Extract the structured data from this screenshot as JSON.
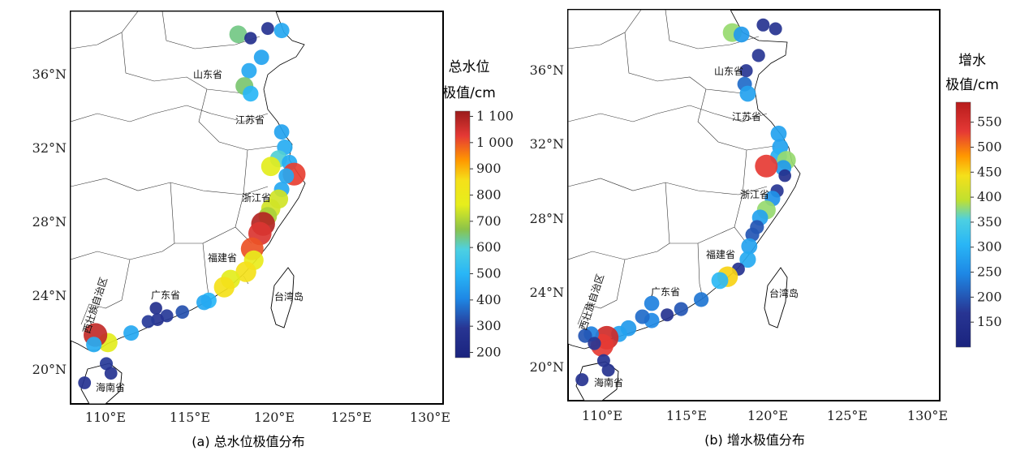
{
  "panel_a": {
    "caption": "(a) 总水位极值分布",
    "legend_title_line1": "总水位",
    "legend_title_line2": "极值/cm",
    "legend_ticks": [
      "1 100",
      "1 000",
      "900",
      "800",
      "700",
      "600",
      "500",
      "400",
      "300",
      "200"
    ],
    "x_ticks": [
      "110°E",
      "115°E",
      "120°E",
      "125°E",
      "130°E"
    ],
    "y_ticks": [
      "36°N",
      "32°N",
      "28°N",
      "24°N",
      "20°N"
    ],
    "labels": {
      "shandong": "山东省",
      "jiangsu": "江苏省",
      "zhejiang": "浙江省",
      "fujian": "福建省",
      "guangdong": "广东省",
      "guangxi": "西壮族自治区",
      "taiwan": "台湾岛",
      "hainan": "海南省"
    }
  },
  "panel_b": {
    "caption": "(b) 增水极值分布",
    "legend_title_line1": "增水",
    "legend_title_line2": "极值/cm",
    "legend_ticks": [
      "550",
      "500",
      "450",
      "400",
      "350",
      "300",
      "250",
      "200",
      "150"
    ],
    "x_ticks": [
      "110°E",
      "115°E",
      "120°E",
      "125°E",
      "130°E"
    ],
    "y_ticks": [
      "36°N",
      "32°N",
      "28°N",
      "24°N",
      "20°N"
    ],
    "labels": {
      "shandong": "山东省",
      "jiangsu": "江苏省",
      "zhejiang": "浙江省",
      "fujian": "福建省",
      "guangdong": "广东省",
      "guangxi": "西壮族自治区",
      "taiwan": "台湾岛",
      "hainan": "海南省"
    }
  },
  "chart_data": [
    {
      "type": "scatter",
      "title": "(a) 总水位极值分布",
      "colorbar_label": "总水位极值/cm",
      "colorbar_range": [
        180,
        1120
      ],
      "xlim": [
        108,
        132
      ],
      "ylim": [
        18,
        38.5
      ],
      "points": [
        {
          "lon": 117.3,
          "lat": 39.0,
          "value": 520
        },
        {
          "lon": 118.8,
          "lat": 37.3,
          "value": 640
        },
        {
          "lon": 119.6,
          "lat": 37.1,
          "value": 260
        },
        {
          "lon": 120.7,
          "lat": 37.6,
          "value": 280
        },
        {
          "lon": 121.6,
          "lat": 37.5,
          "value": 470
        },
        {
          "lon": 120.3,
          "lat": 36.1,
          "value": 460
        },
        {
          "lon": 119.5,
          "lat": 35.4,
          "value": 470
        },
        {
          "lon": 119.2,
          "lat": 34.6,
          "value": 650
        },
        {
          "lon": 119.6,
          "lat": 34.2,
          "value": 500
        },
        {
          "lon": 121.6,
          "lat": 32.2,
          "value": 460
        },
        {
          "lon": 121.8,
          "lat": 31.4,
          "value": 480
        },
        {
          "lon": 121.4,
          "lat": 30.8,
          "value": 600
        },
        {
          "lon": 120.9,
          "lat": 30.4,
          "value": 760
        },
        {
          "lon": 122.1,
          "lat": 30.6,
          "value": 480
        },
        {
          "lon": 122.4,
          "lat": 30.0,
          "value": 1020
        },
        {
          "lon": 121.9,
          "lat": 29.9,
          "value": 470
        },
        {
          "lon": 121.6,
          "lat": 29.2,
          "value": 470
        },
        {
          "lon": 121.4,
          "lat": 28.7,
          "value": 740
        },
        {
          "lon": 120.9,
          "lat": 28.2,
          "value": 740
        },
        {
          "lon": 120.7,
          "lat": 27.8,
          "value": 700
        },
        {
          "lon": 120.4,
          "lat": 27.4,
          "value": 1090
        },
        {
          "lon": 120.2,
          "lat": 26.9,
          "value": 1040
        },
        {
          "lon": 119.7,
          "lat": 26.1,
          "value": 1000
        },
        {
          "lon": 119.8,
          "lat": 25.5,
          "value": 780
        },
        {
          "lon": 119.3,
          "lat": 24.9,
          "value": 850
        },
        {
          "lon": 118.3,
          "lat": 24.5,
          "value": 760
        },
        {
          "lon": 117.9,
          "lat": 24.1,
          "value": 850
        },
        {
          "lon": 116.9,
          "lat": 23.4,
          "value": 500
        },
        {
          "lon": 116.6,
          "lat": 23.3,
          "value": 470
        },
        {
          "lon": 115.2,
          "lat": 22.8,
          "value": 330
        },
        {
          "lon": 114.2,
          "lat": 22.6,
          "value": 300
        },
        {
          "lon": 113.5,
          "lat": 23.0,
          "value": 260
        },
        {
          "lon": 113.6,
          "lat": 22.4,
          "value": 280
        },
        {
          "lon": 113.0,
          "lat": 22.3,
          "value": 300
        },
        {
          "lon": 111.9,
          "lat": 21.7,
          "value": 470
        },
        {
          "lon": 110.4,
          "lat": 21.2,
          "value": 760
        },
        {
          "lon": 109.6,
          "lat": 21.6,
          "value": 1070
        },
        {
          "lon": 109.5,
          "lat": 21.1,
          "value": 480
        },
        {
          "lon": 110.3,
          "lat": 20.1,
          "value": 300
        },
        {
          "lon": 110.6,
          "lat": 19.6,
          "value": 280
        },
        {
          "lon": 108.9,
          "lat": 19.1,
          "value": 280
        }
      ]
    },
    {
      "type": "scatter",
      "title": "(b) 增水极值分布",
      "colorbar_label": "增水极值/cm",
      "colorbar_range": [
        100,
        590
      ],
      "xlim": [
        108,
        132
      ],
      "ylim": [
        18,
        38.5
      ],
      "points": [
        {
          "lon": 117.3,
          "lat": 39.0,
          "value": 140
        },
        {
          "lon": 118.6,
          "lat": 37.3,
          "value": 380
        },
        {
          "lon": 119.2,
          "lat": 37.2,
          "value": 270
        },
        {
          "lon": 120.6,
          "lat": 37.7,
          "value": 160
        },
        {
          "lon": 121.4,
          "lat": 37.5,
          "value": 160
        },
        {
          "lon": 120.3,
          "lat": 36.1,
          "value": 170
        },
        {
          "lon": 119.5,
          "lat": 35.3,
          "value": 170
        },
        {
          "lon": 119.4,
          "lat": 34.6,
          "value": 220
        },
        {
          "lon": 119.6,
          "lat": 34.1,
          "value": 280
        },
        {
          "lon": 121.6,
          "lat": 32.0,
          "value": 280
        },
        {
          "lon": 121.7,
          "lat": 31.3,
          "value": 280
        },
        {
          "lon": 121.6,
          "lat": 30.8,
          "value": 300
        },
        {
          "lon": 122.1,
          "lat": 30.6,
          "value": 380
        },
        {
          "lon": 121.9,
          "lat": 30.2,
          "value": 270
        },
        {
          "lon": 120.8,
          "lat": 30.3,
          "value": 530
        },
        {
          "lon": 122.0,
          "lat": 29.8,
          "value": 150
        },
        {
          "lon": 121.5,
          "lat": 29.0,
          "value": 170
        },
        {
          "lon": 121.2,
          "lat": 28.6,
          "value": 260
        },
        {
          "lon": 120.8,
          "lat": 28.0,
          "value": 380
        },
        {
          "lon": 120.4,
          "lat": 27.6,
          "value": 280
        },
        {
          "lon": 120.2,
          "lat": 27.1,
          "value": 200
        },
        {
          "lon": 119.9,
          "lat": 26.7,
          "value": 200
        },
        {
          "lon": 119.7,
          "lat": 26.1,
          "value": 280
        },
        {
          "lon": 119.6,
          "lat": 25.4,
          "value": 290
        },
        {
          "lon": 119.0,
          "lat": 24.9,
          "value": 160
        },
        {
          "lon": 118.3,
          "lat": 24.5,
          "value": 450
        },
        {
          "lon": 117.8,
          "lat": 24.3,
          "value": 310
        },
        {
          "lon": 116.6,
          "lat": 23.3,
          "value": 230
        },
        {
          "lon": 115.3,
          "lat": 22.8,
          "value": 200
        },
        {
          "lon": 114.4,
          "lat": 22.5,
          "value": 160
        },
        {
          "lon": 113.4,
          "lat": 23.1,
          "value": 240
        },
        {
          "lon": 113.4,
          "lat": 22.2,
          "value": 250
        },
        {
          "lon": 112.8,
          "lat": 22.4,
          "value": 220
        },
        {
          "lon": 111.9,
          "lat": 21.8,
          "value": 270
        },
        {
          "lon": 111.3,
          "lat": 21.5,
          "value": 280
        },
        {
          "lon": 110.5,
          "lat": 21.3,
          "value": 560
        },
        {
          "lon": 110.2,
          "lat": 20.9,
          "value": 530
        },
        {
          "lon": 109.5,
          "lat": 21.5,
          "value": 240
        },
        {
          "lon": 109.1,
          "lat": 21.4,
          "value": 200
        },
        {
          "lon": 109.7,
          "lat": 21.0,
          "value": 170
        },
        {
          "lon": 110.3,
          "lat": 20.1,
          "value": 160
        },
        {
          "lon": 110.6,
          "lat": 19.6,
          "value": 160
        },
        {
          "lon": 108.9,
          "lat": 19.1,
          "value": 160
        }
      ]
    }
  ]
}
